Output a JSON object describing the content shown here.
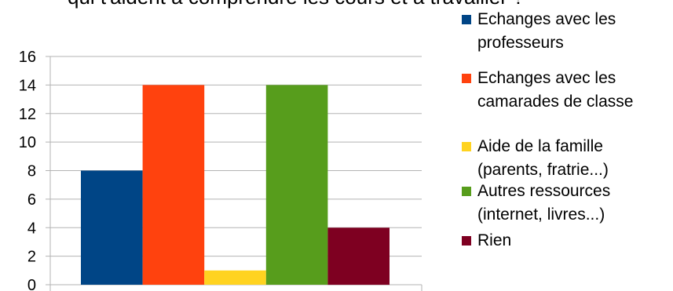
{
  "chart_data": {
    "type": "bar",
    "title": "qui t'aident à comprendre les cours et à travailler ?",
    "categories": [
      "Echanges avec les professeurs",
      "Echanges avec les camarades de classe",
      "Aide de la famille (parents, fratrie...)",
      "Autres ressources (internet, livres...)",
      "Rien"
    ],
    "series": [
      {
        "name": "Echanges avec les\nprofesseurs",
        "value": 8,
        "color": "#004586"
      },
      {
        "name": "Echanges avec les\ncamarades de classe",
        "value": 14,
        "color": "#ff420e"
      },
      {
        "name": "Aide de la famille\n(parents, fratrie...)",
        "value": 1,
        "color": "#ffd320"
      },
      {
        "name": "Autres ressources\n(internet, livres...)",
        "value": 14,
        "color": "#579d1c"
      },
      {
        "name": "Rien",
        "value": 4,
        "color": "#7e0021"
      }
    ],
    "ylim": [
      0,
      16
    ],
    "yticks": [
      "0",
      "2",
      "4",
      "6",
      "8",
      "10",
      "12",
      "14",
      "16"
    ],
    "grid": true,
    "legend": "right"
  }
}
